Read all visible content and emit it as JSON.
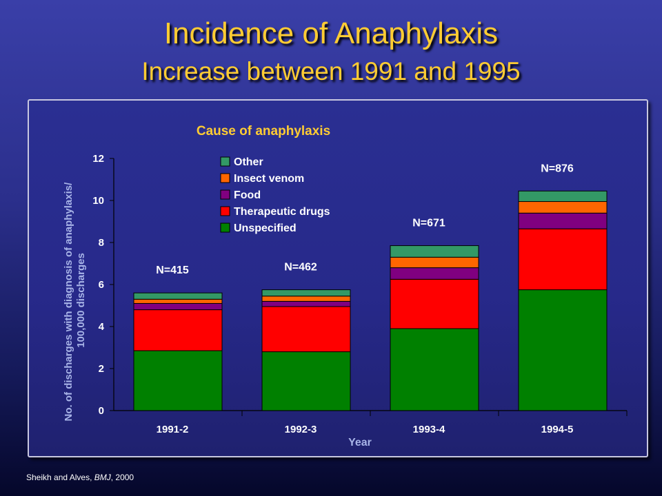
{
  "slide": {
    "title": "Incidence of Anaphylaxis",
    "subtitle": "Increase between 1991 and 1995",
    "source_authors": "Sheikh and Alves, ",
    "source_journal": "BMJ",
    "source_year": ", 2000"
  },
  "colors": {
    "title": "#ffcc33",
    "axis_text": "#ffffff",
    "axis_label": "#a8b4e8",
    "chart_title": "#ffcc33"
  },
  "chart_data": {
    "type": "bar",
    "stacked": true,
    "title": "Cause of anaphylaxis",
    "xlabel": "Year",
    "ylabel": "No. of discharges with diagnosis of anaphylaxis/ 100,000 discharges",
    "ylabel_lines": [
      "No. of discharges with diagnosis of anaphylaxis/",
      "100,000 discharges"
    ],
    "ylim": [
      0,
      12
    ],
    "yticks": [
      0,
      2,
      4,
      6,
      8,
      10,
      12
    ],
    "categories": [
      "1991-2",
      "1992-3",
      "1993-4",
      "1994-5"
    ],
    "bar_labels": [
      "N=415",
      "N=462",
      "N=671",
      "N=876"
    ],
    "legend_placement": "top-center",
    "grid": false,
    "series": [
      {
        "name": "Unspecified",
        "color": "#008000",
        "values": [
          2.85,
          2.8,
          3.9,
          5.75
        ]
      },
      {
        "name": "Therapeutic drugs",
        "color": "#ff0000",
        "values": [
          1.95,
          2.15,
          2.35,
          2.9
        ]
      },
      {
        "name": "Food",
        "color": "#800080",
        "values": [
          0.3,
          0.25,
          0.55,
          0.75
        ]
      },
      {
        "name": "Insect venom",
        "color": "#ff6600",
        "values": [
          0.2,
          0.25,
          0.5,
          0.55
        ]
      },
      {
        "name": "Other",
        "color": "#339966",
        "values": [
          0.3,
          0.3,
          0.55,
          0.5
        ]
      }
    ],
    "legend_order": [
      "Other",
      "Insect venom",
      "Food",
      "Therapeutic drugs",
      "Unspecified"
    ]
  }
}
